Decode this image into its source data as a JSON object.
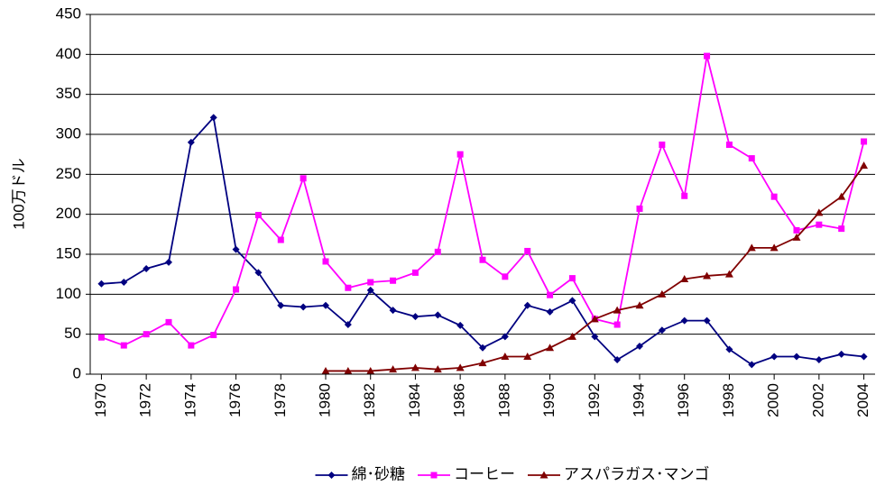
{
  "chart_data": {
    "type": "line",
    "y_label": "100万ドル",
    "x": [
      1970,
      1971,
      1972,
      1973,
      1974,
      1975,
      1976,
      1977,
      1978,
      1979,
      1980,
      1981,
      1982,
      1983,
      1984,
      1985,
      1986,
      1987,
      1988,
      1989,
      1990,
      1991,
      1992,
      1993,
      1994,
      1995,
      1996,
      1997,
      1998,
      1999,
      2000,
      2001,
      2002,
      2003,
      2004
    ],
    "xlim": [
      1969.5,
      2004.5
    ],
    "xticks": [
      1970,
      1972,
      1974,
      1976,
      1978,
      1980,
      1982,
      1984,
      1986,
      1988,
      1990,
      1992,
      1994,
      1996,
      1998,
      2000,
      2002,
      2004
    ],
    "ylim": [
      0,
      450
    ],
    "yticks": [
      0,
      50,
      100,
      150,
      200,
      250,
      300,
      350,
      400,
      450
    ],
    "grid": true,
    "legend": "bottom",
    "series": [
      {
        "name": "綿･砂糖",
        "color": "#000080",
        "marker": "diamond",
        "values": [
          113,
          115,
          132,
          140,
          290,
          321,
          156,
          127,
          86,
          84,
          86,
          62,
          105,
          80,
          72,
          74,
          61,
          33,
          47,
          86,
          78,
          92,
          47,
          18,
          35,
          55,
          67,
          67,
          31,
          12,
          22,
          22,
          18,
          25,
          22
        ]
      },
      {
        "name": "コーヒー",
        "color": "#ff00ff",
        "marker": "square",
        "values": [
          46,
          36,
          50,
          65,
          36,
          49,
          106,
          199,
          168,
          245,
          141,
          108,
          115,
          117,
          127,
          153,
          275,
          143,
          122,
          154,
          99,
          120,
          69,
          62,
          207,
          287,
          223,
          398,
          287,
          270,
          222,
          180,
          187,
          182,
          291
        ]
      },
      {
        "name": "アスパラガス･マンゴ",
        "color": "#800000",
        "marker": "triangle",
        "values": [
          null,
          null,
          null,
          null,
          null,
          null,
          null,
          null,
          null,
          null,
          4,
          4,
          4,
          6,
          8,
          6,
          8,
          14,
          22,
          22,
          33,
          47,
          69,
          80,
          86,
          100,
          119,
          123,
          125,
          158,
          158,
          171,
          202,
          222,
          261
        ]
      }
    ]
  }
}
